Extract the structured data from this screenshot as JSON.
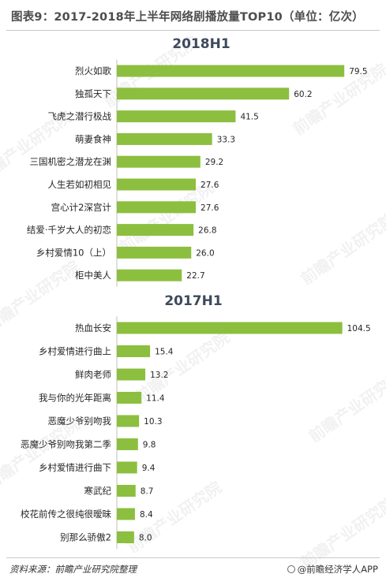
{
  "figure": {
    "title": "图表9：2017-2018年上半年网络剧播放量TOP10（单位：亿次）",
    "source": "资料来源：前瞻产业研究院整理",
    "brand": "@前瞻经济学人APP",
    "watermark": "前瞻产业研究院",
    "bar_color": "#8cbf3f"
  },
  "chart_data": [
    {
      "type": "bar",
      "orientation": "horizontal",
      "title": "2018H1",
      "categories": [
        "烈火如歌",
        "独孤天下",
        "飞虎之潜行极战",
        "萌妻食神",
        "三国机密之潜龙在渊",
        "人生若如初相见",
        "宫心计2深宫计",
        "结爱·千岁大人的初恋",
        "乡村爱情10（上）",
        "柜中美人"
      ],
      "values": [
        79.5,
        60.2,
        41.5,
        33.3,
        29.2,
        27.6,
        27.6,
        26.8,
        26.0,
        22.7
      ],
      "value_labels": [
        "79.5",
        "60.2",
        "41.5",
        "33.3",
        "29.2",
        "27.6",
        "27.6",
        "26.8",
        "26.0",
        "22.7"
      ],
      "xlim": [
        0,
        80
      ]
    },
    {
      "type": "bar",
      "orientation": "horizontal",
      "title": "2017H1",
      "categories": [
        "热血长安",
        "乡村爱情进行曲上",
        "鲜肉老师",
        "我与你的光年距离",
        "恶魔少爷别吻我",
        "恶魔少爷别吻我第二季",
        "乡村爱情进行曲下",
        "寒武纪",
        "校花前传之很纯很暧昧",
        "别那么骄傲2"
      ],
      "values": [
        104.5,
        15.4,
        13.2,
        11.4,
        10.3,
        9.8,
        9.4,
        8.7,
        8.4,
        8.0
      ],
      "value_labels": [
        "104.5",
        "15.4",
        "13.2",
        "11.4",
        "10.3",
        "9.8",
        "9.4",
        "8.7",
        "8.4",
        "8.0"
      ],
      "xlim": [
        0,
        105
      ]
    }
  ]
}
